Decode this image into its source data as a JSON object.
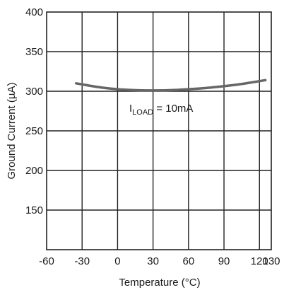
{
  "chart_data": {
    "type": "line",
    "xlabel": "Temperature (°C)",
    "ylabel": "Ground Current (µA)",
    "xlim": [
      -60,
      130
    ],
    "ylim": [
      100,
      400
    ],
    "x_ticks": [
      "-60",
      "-30",
      "0",
      "30",
      "60",
      "90",
      "120",
      "130"
    ],
    "y_ticks": [
      "400",
      "350",
      "300",
      "250",
      "200",
      "150"
    ],
    "grid": true,
    "annotation": {
      "prefix": "I",
      "subscript": "LOAD",
      "suffix": " = 10mA"
    },
    "series": [
      {
        "color": "#666666",
        "x": [
          -35,
          -20,
          -5,
          10,
          25,
          40,
          55,
          70,
          85,
          100,
          115,
          125
        ],
        "y": [
          310,
          306,
          303,
          301.5,
          301,
          301,
          302,
          303.5,
          305.5,
          308,
          311.5,
          314
        ]
      }
    ]
  }
}
